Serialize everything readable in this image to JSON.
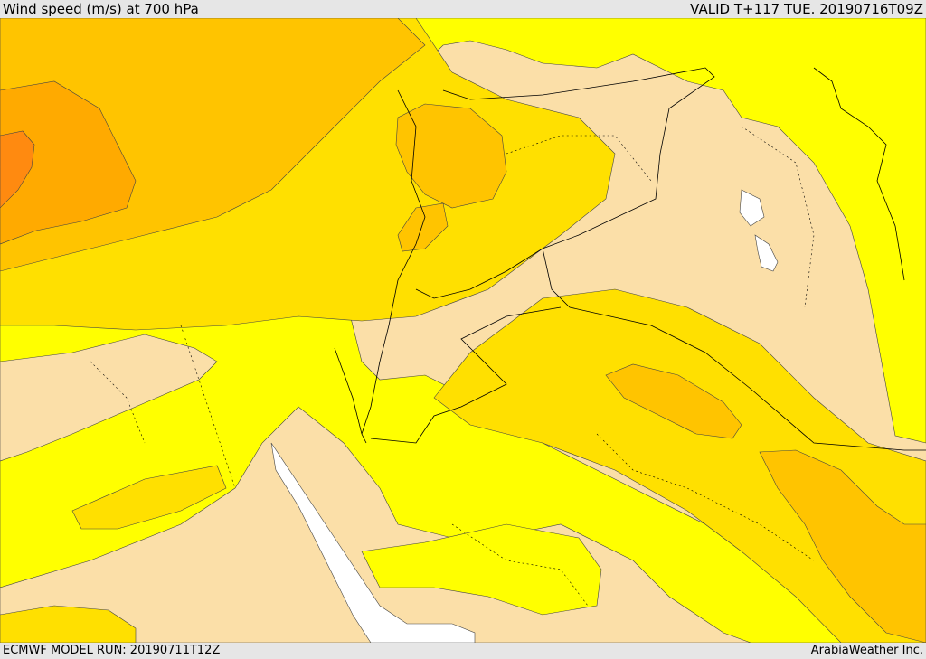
{
  "header": {
    "title": "Wind speed (m/s) at 700 hPa",
    "valid": "VALID T+117 TUE. 20190716T09Z"
  },
  "footer": {
    "model_run": "ECMWF MODEL RUN: 20190711T12Z",
    "credit": "ArabiaWeather Inc."
  },
  "colors": {
    "band_lightest": "#fbdfa8",
    "band_yellow": "#ffff00",
    "band_gold": "#ffe000",
    "band_amber": "#ffc400",
    "band_orange": "#ffaa00",
    "band_deep_orange": "#ff8a10",
    "band_red_orange": "#ff6a00",
    "no_data": "#ffffff",
    "frame": "#e6e6e6"
  }
}
